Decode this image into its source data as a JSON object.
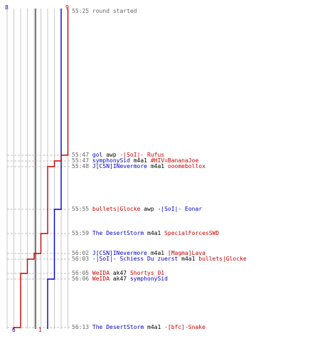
{
  "teams": {
    "blue": {
      "start": "8",
      "end": "6",
      "color": "#0000cc"
    },
    "red": {
      "start": "9",
      "end": "1",
      "color": "#cc0000"
    }
  },
  "events": [
    {
      "time": "55:25",
      "text": "round started",
      "type": "info"
    },
    {
      "time": "55:47",
      "killer": "gol",
      "weapon": "awp",
      "victim": "-|SoI|- Rufus",
      "killer_team": "blue",
      "victim_team": "red"
    },
    {
      "time": "55:47",
      "killer": "symphonySid",
      "weapon": "m4a1",
      "victim": "#HIV=BananaJoe",
      "killer_team": "blue",
      "victim_team": "red"
    },
    {
      "time": "55:48",
      "killer": "J[CSN]INevermore",
      "weapon": "m4a1",
      "victim": "ooomebollox",
      "killer_team": "blue",
      "victim_team": "red"
    },
    {
      "time": "55:55",
      "killer": "bullets|Glocke",
      "weapon": "awp",
      "victim": "-|SoI|- Eonar",
      "killer_team": "red",
      "victim_team": "blue"
    },
    {
      "time": "55:59",
      "killer": "The DesertStorm",
      "weapon": "m4a1",
      "victim": "SpecialForcesSWD",
      "killer_team": "blue",
      "victim_team": "red"
    },
    {
      "time": "56:02",
      "killer": "J[CSN]INevermore",
      "weapon": "m4a1",
      "victim": "[Magma]Lava",
      "killer_team": "blue",
      "victim_team": "red"
    },
    {
      "time": "56:03",
      "killer": "-|SoI|- Schiess Du zuerst",
      "weapon": "m4a1",
      "victim": "bullets|Glocke",
      "killer_team": "blue",
      "victim_team": "red"
    },
    {
      "time": "56:05",
      "killer": "WeIDA",
      "weapon": "ak47",
      "victim": "Shortys_01",
      "killer_team": "red",
      "victim_team": "red"
    },
    {
      "time": "56:06",
      "killer": "WeIDA",
      "weapon": "ak47",
      "victim": "symphonySid",
      "killer_team": "red",
      "victim_team": "blue"
    },
    {
      "time": "56:13",
      "killer": "The DesertStorm",
      "weapon": "m4a1",
      "victim": "-[bfc]-Snake",
      "killer_team": "blue",
      "victim_team": "red"
    }
  ]
}
